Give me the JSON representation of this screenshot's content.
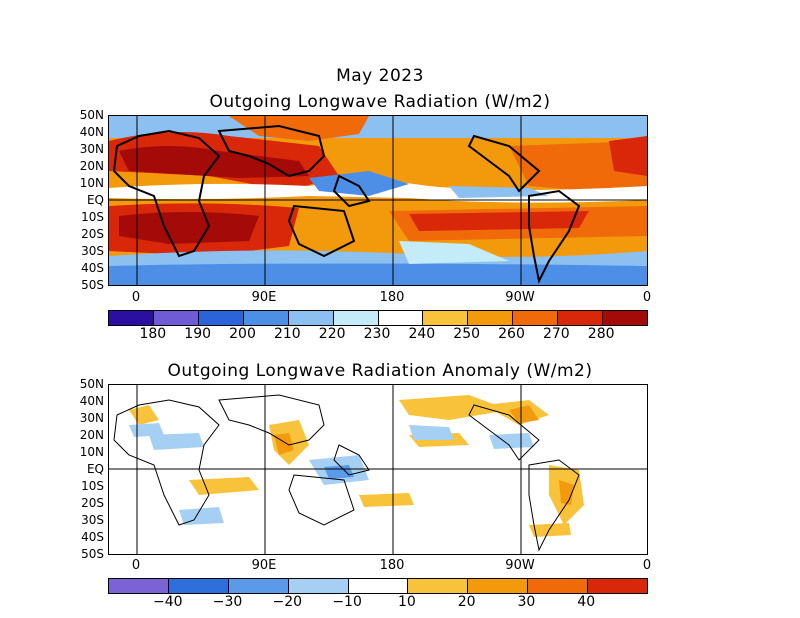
{
  "header": {
    "date": "May 2023",
    "top_title": "Outgoing Longwave Radiation (W/m2)",
    "bottom_title": "Outgoing Longwave Radiation Anomaly (W/m2)"
  },
  "lat_labels": [
    "50N",
    "40N",
    "30N",
    "20N",
    "10N",
    "EQ",
    "10S",
    "20S",
    "30S",
    "40S",
    "50S"
  ],
  "lon_labels": [
    "0",
    "90E",
    "180",
    "90W",
    "0"
  ],
  "top_colorbar": {
    "labels": [
      "180",
      "190",
      "200",
      "210",
      "220",
      "230",
      "240",
      "250",
      "260",
      "270",
      "280"
    ],
    "colors": [
      "#2a0fa0",
      "#6f5bd6",
      "#2b63d8",
      "#4d8fe6",
      "#8cc0f0",
      "#c4ecf8",
      "#ffffff",
      "#f9c23b",
      "#f39a0c",
      "#f06a0a",
      "#d9270a",
      "#a30a08"
    ]
  },
  "bottom_colorbar": {
    "labels": [
      "−40",
      "−30",
      "−20",
      "−10",
      "10",
      "20",
      "30",
      "40"
    ],
    "colors": [
      "#7b63d6",
      "#2f6fdc",
      "#5a9ae8",
      "#a6d0f3",
      "#ffffff",
      "#f9c23b",
      "#f39a0c",
      "#f06a0a",
      "#d9270a"
    ]
  }
}
